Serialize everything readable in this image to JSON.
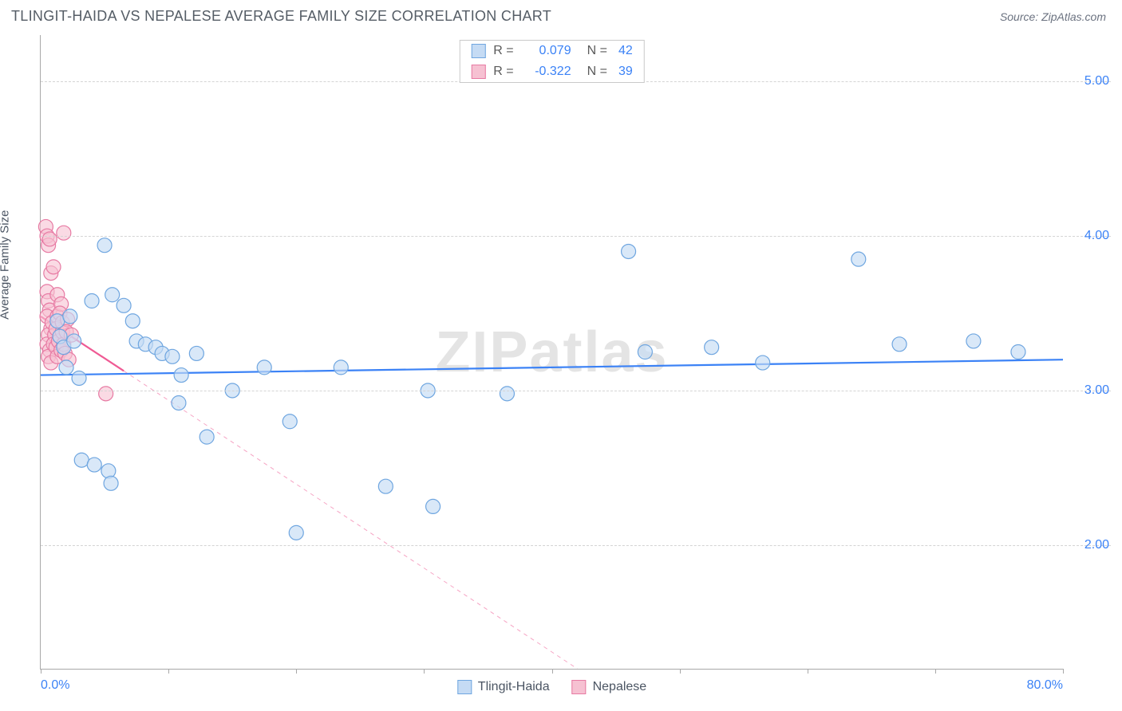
{
  "title": "TLINGIT-HAIDA VS NEPALESE AVERAGE FAMILY SIZE CORRELATION CHART",
  "source": "Source: ZipAtlas.com",
  "watermark": "ZIPatlas",
  "y_axis_label": "Average Family Size",
  "chart": {
    "type": "scatter",
    "xlim": [
      0,
      80
    ],
    "ylim": [
      1.2,
      5.3
    ],
    "x_ticks": [
      0,
      10,
      20,
      30,
      40,
      50,
      60,
      70,
      80
    ],
    "x_tick_labels_shown": {
      "0": "0.0%",
      "80": "80.0%"
    },
    "y_gridlines": [
      2.0,
      3.0,
      4.0,
      5.0
    ],
    "y_tick_labels": {
      "2.0": "2.00",
      "3.0": "3.00",
      "4.0": "4.00",
      "5.0": "5.00"
    },
    "background_color": "#ffffff",
    "grid_color": "#d4d4d4",
    "axis_color": "#a8a8a8",
    "marker_radius": 9,
    "marker_stroke_width": 1.2,
    "trend_line_width": 2.2,
    "trend_dash_width": 1,
    "series": [
      {
        "name": "Tlingit-Haida",
        "fill": "#c5dbf4",
        "stroke": "#6fa6e0",
        "fill_opacity": 0.65,
        "r_value": "0.079",
        "n_value": "42",
        "trend": {
          "x1": 0,
          "y1": 3.1,
          "x2": 80,
          "y2": 3.2,
          "solid_until_x": 80,
          "color": "#3b82f6"
        },
        "points": [
          [
            1.3,
            3.45
          ],
          [
            1.5,
            3.35
          ],
          [
            1.8,
            3.28
          ],
          [
            2.0,
            3.15
          ],
          [
            2.3,
            3.48
          ],
          [
            2.6,
            3.32
          ],
          [
            3.0,
            3.08
          ],
          [
            3.2,
            2.55
          ],
          [
            4.0,
            3.58
          ],
          [
            4.2,
            2.52
          ],
          [
            5.0,
            3.94
          ],
          [
            5.3,
            2.48
          ],
          [
            5.5,
            2.4
          ],
          [
            5.6,
            3.62
          ],
          [
            6.5,
            3.55
          ],
          [
            7.2,
            3.45
          ],
          [
            7.5,
            3.32
          ],
          [
            8.2,
            3.3
          ],
          [
            9.0,
            3.28
          ],
          [
            9.5,
            3.24
          ],
          [
            10.3,
            3.22
          ],
          [
            10.8,
            2.92
          ],
          [
            11.0,
            3.1
          ],
          [
            12.2,
            3.24
          ],
          [
            13.0,
            2.7
          ],
          [
            15.0,
            3.0
          ],
          [
            17.5,
            3.15
          ],
          [
            19.5,
            2.8
          ],
          [
            20.0,
            2.08
          ],
          [
            23.5,
            3.15
          ],
          [
            27.0,
            2.38
          ],
          [
            30.3,
            3.0
          ],
          [
            30.7,
            2.25
          ],
          [
            36.5,
            2.98
          ],
          [
            46.0,
            3.9
          ],
          [
            47.3,
            3.25
          ],
          [
            52.5,
            3.28
          ],
          [
            56.5,
            3.18
          ],
          [
            64.0,
            3.85
          ],
          [
            67.2,
            3.3
          ],
          [
            73.0,
            3.32
          ],
          [
            76.5,
            3.25
          ]
        ]
      },
      {
        "name": "Nepalese",
        "fill": "#f6c1d2",
        "stroke": "#e77aa3",
        "fill_opacity": 0.6,
        "r_value": "-0.322",
        "n_value": "39",
        "trend": {
          "x1": 0,
          "y1": 3.48,
          "x2": 42,
          "y2": 1.2,
          "solid_until_x": 6.5,
          "color": "#ef5a94"
        },
        "points": [
          [
            0.4,
            4.06
          ],
          [
            0.5,
            4.0
          ],
          [
            0.6,
            3.94
          ],
          [
            0.7,
            3.98
          ],
          [
            0.5,
            3.64
          ],
          [
            0.8,
            3.76
          ],
          [
            0.6,
            3.58
          ],
          [
            0.7,
            3.52
          ],
          [
            0.5,
            3.48
          ],
          [
            0.8,
            3.4
          ],
          [
            0.6,
            3.36
          ],
          [
            0.9,
            3.44
          ],
          [
            0.5,
            3.3
          ],
          [
            0.7,
            3.26
          ],
          [
            0.6,
            3.22
          ],
          [
            0.8,
            3.18
          ],
          [
            1.0,
            3.8
          ],
          [
            1.1,
            3.36
          ],
          [
            1.0,
            3.3
          ],
          [
            1.2,
            3.28
          ],
          [
            1.3,
            3.48
          ],
          [
            1.2,
            3.4
          ],
          [
            1.3,
            3.62
          ],
          [
            1.5,
            3.35
          ],
          [
            1.4,
            3.32
          ],
          [
            1.3,
            3.22
          ],
          [
            1.6,
            3.56
          ],
          [
            1.5,
            3.5
          ],
          [
            1.6,
            3.26
          ],
          [
            1.7,
            3.38
          ],
          [
            1.8,
            3.3
          ],
          [
            1.7,
            3.44
          ],
          [
            1.9,
            3.24
          ],
          [
            1.8,
            4.02
          ],
          [
            2.1,
            3.46
          ],
          [
            2.0,
            3.38
          ],
          [
            2.2,
            3.2
          ],
          [
            2.4,
            3.36
          ],
          [
            5.1,
            2.98
          ]
        ]
      }
    ]
  },
  "legend_bottom": [
    {
      "label": "Tlingit-Haida",
      "fill": "#c5dbf4",
      "stroke": "#6fa6e0"
    },
    {
      "label": "Nepalese",
      "fill": "#f6c1d2",
      "stroke": "#e77aa3"
    }
  ]
}
